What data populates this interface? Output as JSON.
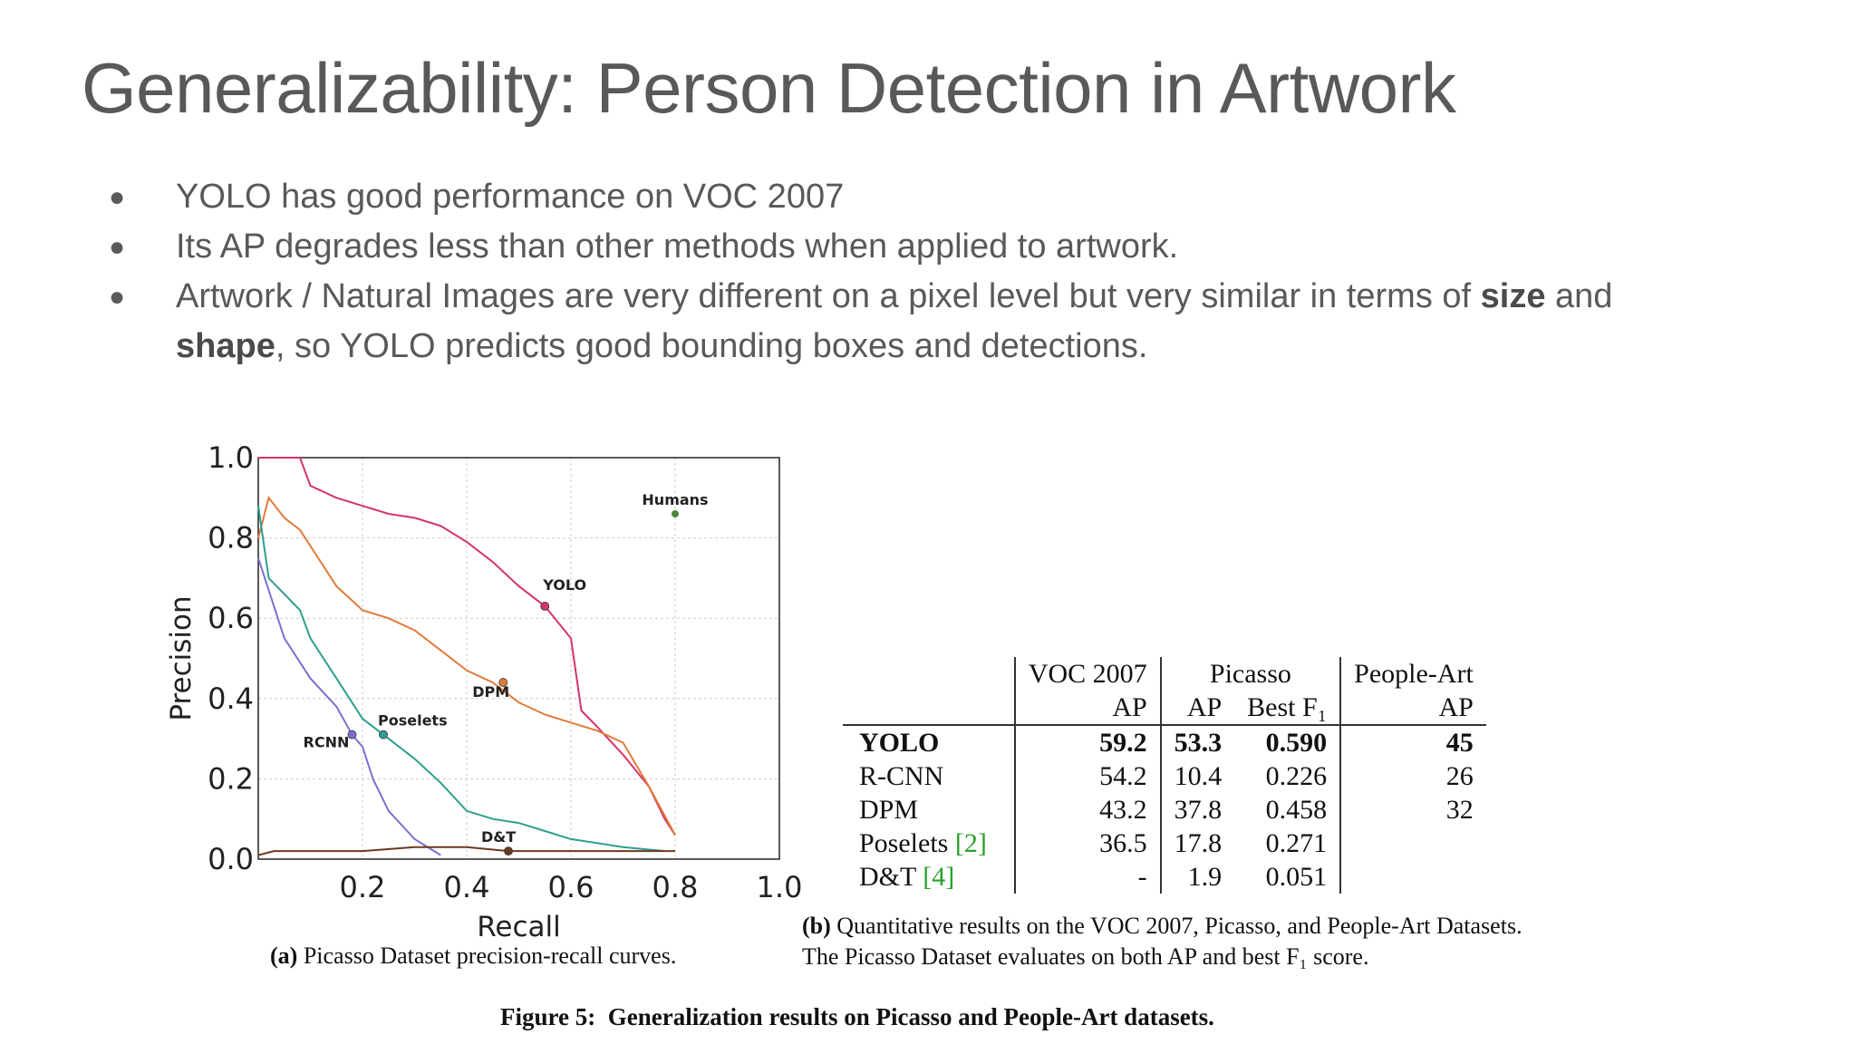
{
  "slide": {
    "title": "Generalizability: Person Detection in Artwork",
    "bullets": {
      "b1": "YOLO has good performance on VOC 2007",
      "b2": "Its AP degrades less than other methods when applied to artwork.",
      "b3_part1": "Artwork / Natural Images are very different on a pixel level but very similar in terms of ",
      "b3_bold1": "size",
      "b3_part2": " and ",
      "b3_bold2": "shape",
      "b3_part3": ", so YOLO predicts good bounding boxes and detections."
    }
  },
  "chart_data": {
    "type": "line",
    "xlabel": "Recall",
    "ylabel": "Precision",
    "xlim": [
      0.0,
      1.0
    ],
    "ylim": [
      0.0,
      1.0
    ],
    "x_ticks": [
      "0.2",
      "0.4",
      "0.6",
      "0.8",
      "1.0"
    ],
    "y_ticks": [
      "0.0",
      "0.2",
      "0.4",
      "0.6",
      "0.8",
      "1.0"
    ],
    "grid": true,
    "series": [
      {
        "name": "YOLO",
        "color": "#d6336c",
        "marker": [
          0.55,
          0.63
        ],
        "points": [
          [
            0.0,
            1.0
          ],
          [
            0.05,
            1.0
          ],
          [
            0.08,
            1.0
          ],
          [
            0.1,
            0.93
          ],
          [
            0.15,
            0.9
          ],
          [
            0.2,
            0.88
          ],
          [
            0.25,
            0.86
          ],
          [
            0.3,
            0.85
          ],
          [
            0.35,
            0.83
          ],
          [
            0.4,
            0.79
          ],
          [
            0.45,
            0.74
          ],
          [
            0.5,
            0.68
          ],
          [
            0.55,
            0.63
          ],
          [
            0.6,
            0.55
          ],
          [
            0.62,
            0.37
          ],
          [
            0.65,
            0.33
          ],
          [
            0.7,
            0.26
          ],
          [
            0.75,
            0.18
          ],
          [
            0.78,
            0.1
          ],
          [
            0.8,
            0.06
          ]
        ]
      },
      {
        "name": "DPM",
        "color": "#e07b39",
        "marker": [
          0.47,
          0.44
        ],
        "points": [
          [
            0.0,
            0.8
          ],
          [
            0.02,
            0.9
          ],
          [
            0.05,
            0.85
          ],
          [
            0.08,
            0.82
          ],
          [
            0.1,
            0.78
          ],
          [
            0.15,
            0.68
          ],
          [
            0.2,
            0.62
          ],
          [
            0.25,
            0.6
          ],
          [
            0.3,
            0.57
          ],
          [
            0.35,
            0.52
          ],
          [
            0.4,
            0.47
          ],
          [
            0.45,
            0.44
          ],
          [
            0.5,
            0.39
          ],
          [
            0.55,
            0.36
          ],
          [
            0.6,
            0.34
          ],
          [
            0.65,
            0.32
          ],
          [
            0.7,
            0.29
          ],
          [
            0.75,
            0.18
          ],
          [
            0.8,
            0.06
          ]
        ]
      },
      {
        "name": "Poselets",
        "color": "#2e9e8f",
        "marker": [
          0.24,
          0.31
        ],
        "points": [
          [
            0.0,
            0.88
          ],
          [
            0.02,
            0.7
          ],
          [
            0.05,
            0.66
          ],
          [
            0.08,
            0.62
          ],
          [
            0.1,
            0.55
          ],
          [
            0.15,
            0.45
          ],
          [
            0.2,
            0.35
          ],
          [
            0.25,
            0.3
          ],
          [
            0.3,
            0.25
          ],
          [
            0.35,
            0.19
          ],
          [
            0.4,
            0.12
          ],
          [
            0.45,
            0.1
          ],
          [
            0.5,
            0.09
          ],
          [
            0.55,
            0.07
          ],
          [
            0.6,
            0.05
          ],
          [
            0.7,
            0.03
          ],
          [
            0.78,
            0.02
          ]
        ]
      },
      {
        "name": "RCNN",
        "color": "#7b6fd0",
        "marker": [
          0.18,
          0.31
        ],
        "points": [
          [
            0.0,
            0.75
          ],
          [
            0.02,
            0.67
          ],
          [
            0.05,
            0.55
          ],
          [
            0.1,
            0.45
          ],
          [
            0.15,
            0.38
          ],
          [
            0.18,
            0.31
          ],
          [
            0.2,
            0.28
          ],
          [
            0.22,
            0.2
          ],
          [
            0.25,
            0.12
          ],
          [
            0.3,
            0.05
          ],
          [
            0.35,
            0.01
          ]
        ]
      },
      {
        "name": "D&T",
        "color": "#6b3a1f",
        "marker": [
          0.48,
          0.02
        ],
        "points": [
          [
            0.0,
            0.01
          ],
          [
            0.03,
            0.02
          ],
          [
            0.1,
            0.02
          ],
          [
            0.2,
            0.02
          ],
          [
            0.3,
            0.03
          ],
          [
            0.4,
            0.03
          ],
          [
            0.48,
            0.02
          ],
          [
            0.6,
            0.02
          ],
          [
            0.7,
            0.02
          ],
          [
            0.8,
            0.02
          ]
        ]
      }
    ],
    "humans": {
      "name": "Humans",
      "point": [
        0.8,
        0.86
      ],
      "color": "#4a8a3a"
    }
  },
  "figure": {
    "caption_a_label": "(a)",
    "caption_a_text": "Picasso Dataset precision-recall curves.",
    "caption_b_label": "(b)",
    "caption_b_line1": "Quantitative results on the VOC 2007, Picasso, and People-Art Datasets.",
    "caption_b_line2": "The Picasso Dataset evaluates on both AP and best F₁ score.",
    "main_label": "Figure 5:",
    "main_text": "Generalization results on Picasso and People-Art datasets."
  },
  "table": {
    "group_headers": {
      "voc": "VOC 2007",
      "picasso": "Picasso",
      "people_art": "People-Art"
    },
    "sub_headers": {
      "voc_ap": "AP",
      "picasso_ap": "AP",
      "picasso_f1": "Best F₁",
      "people_ap": "AP"
    },
    "rows": [
      {
        "method": "YOLO",
        "cite": "",
        "voc_ap": "59.2",
        "picasso_ap": "53.3",
        "picasso_f1": "0.590",
        "people_ap": "45"
      },
      {
        "method": "R-CNN",
        "cite": "",
        "voc_ap": "54.2",
        "picasso_ap": "10.4",
        "picasso_f1": "0.226",
        "people_ap": "26"
      },
      {
        "method": "DPM",
        "cite": "",
        "voc_ap": "43.2",
        "picasso_ap": "37.8",
        "picasso_f1": "0.458",
        "people_ap": "32"
      },
      {
        "method": "Poselets",
        "cite": "[2]",
        "voc_ap": "36.5",
        "picasso_ap": "17.8",
        "picasso_f1": "0.271",
        "people_ap": ""
      },
      {
        "method": "D&T",
        "cite": "[4]",
        "voc_ap": "-",
        "picasso_ap": "1.9",
        "picasso_f1": "0.051",
        "people_ap": ""
      }
    ]
  }
}
